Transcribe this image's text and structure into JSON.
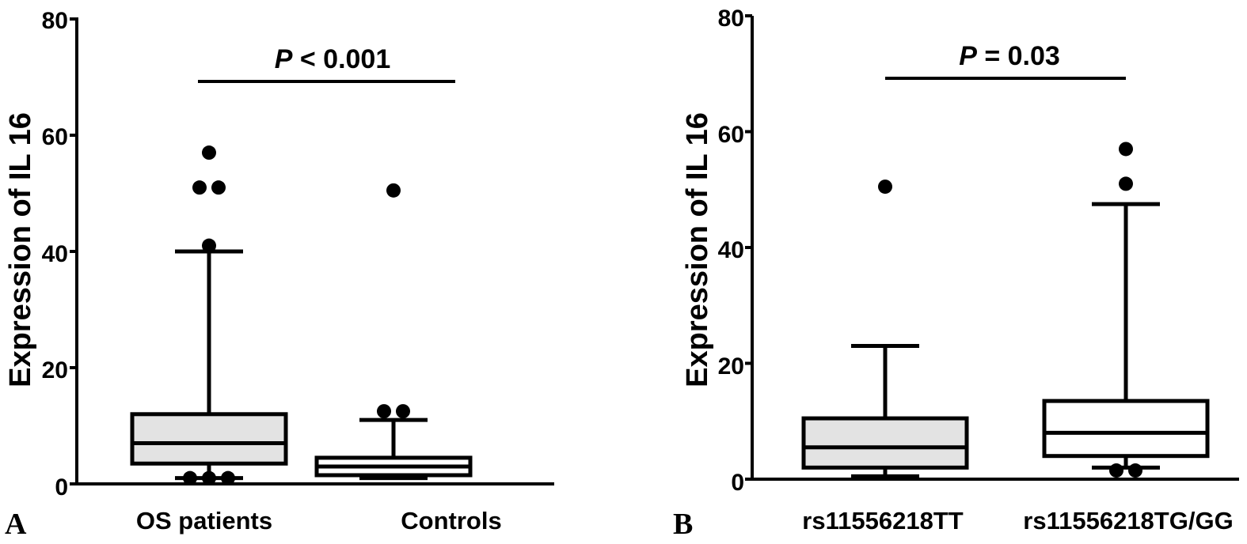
{
  "chart_data": [
    {
      "type": "box",
      "panel_label": "A",
      "ylabel": "Expression of IL 16",
      "ylim": [
        0,
        80
      ],
      "yticks": [
        "0",
        "20",
        "40",
        "60",
        "80"
      ],
      "significance": {
        "prefix": "P",
        "text": " < 0.001"
      },
      "groups": [
        {
          "name": "OS patients",
          "fill": "#e3e3e3",
          "whisker_low": 1,
          "q1": 3.5,
          "median": 7,
          "q3": 12,
          "whisker_high": 40,
          "outliers": [
            57,
            51,
            51,
            41,
            1,
            1,
            1
          ]
        },
        {
          "name": "Controls",
          "fill": "#ffffff",
          "whisker_low": 1,
          "q1": 1.5,
          "median": 3,
          "q3": 4.5,
          "whisker_high": 11,
          "outliers": [
            50.5,
            12.5,
            12.5
          ]
        }
      ]
    },
    {
      "type": "box",
      "panel_label": "B",
      "ylabel": "Expression of IL 16",
      "ylim": [
        0,
        80
      ],
      "yticks": [
        "0",
        "20",
        "40",
        "60",
        "80"
      ],
      "significance": {
        "prefix": "P",
        "text": " = 0.03"
      },
      "groups": [
        {
          "name": "rs11556218TT",
          "fill": "#e3e3e3",
          "whisker_low": 0.5,
          "q1": 2,
          "median": 5.5,
          "q3": 10.5,
          "whisker_high": 23,
          "outliers": [
            50.5
          ]
        },
        {
          "name": "rs11556218TG/GG",
          "fill": "#ffffff",
          "whisker_low": 2,
          "q1": 4,
          "median": 8,
          "q3": 13.5,
          "whisker_high": 47.5,
          "outliers": [
            57,
            51,
            1.5,
            1.5
          ]
        }
      ]
    }
  ],
  "colors": {
    "axis": "#000000",
    "box_fill_1": "#e3e3e3",
    "box_fill_2": "#ffffff",
    "background": "#ffffff"
  }
}
